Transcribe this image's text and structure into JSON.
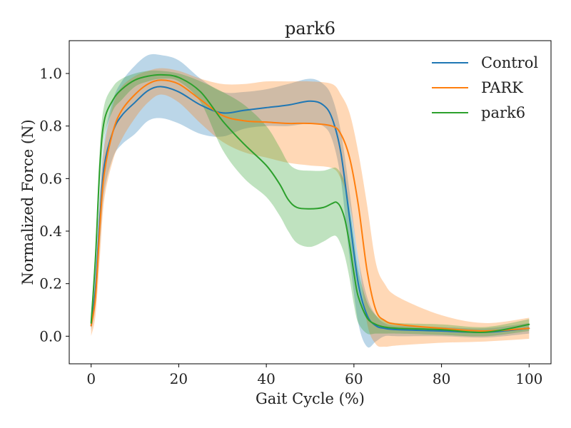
{
  "chart_data": {
    "type": "line",
    "title": "park6",
    "xlabel": "Gait Cycle (%)",
    "ylabel": "Normalized Force (N)",
    "xlim": [
      -5,
      105
    ],
    "ylim": [
      -0.105,
      1.125
    ],
    "xticks": [
      0,
      20,
      40,
      60,
      80,
      100
    ],
    "yticks": [
      0.0,
      0.2,
      0.4,
      0.6,
      0.8,
      1.0
    ],
    "xtick_labels": [
      "0",
      "20",
      "40",
      "60",
      "80",
      "100"
    ],
    "ytick_labels": [
      "0.0",
      "0.2",
      "0.4",
      "0.6",
      "0.8",
      "1.0"
    ],
    "grid": false,
    "legend_position": "top-right",
    "series": [
      {
        "name": "Control",
        "color": "#1f77b4",
        "band_opacity": 0.3,
        "x": [
          0,
          1,
          2,
          3,
          5,
          7,
          10,
          13,
          16,
          20,
          25,
          30,
          35,
          40,
          45,
          50,
          53,
          55,
          57,
          59,
          61,
          63,
          65,
          67,
          70,
          80,
          90,
          100
        ],
        "mean": [
          0.04,
          0.18,
          0.45,
          0.65,
          0.78,
          0.84,
          0.89,
          0.935,
          0.95,
          0.93,
          0.88,
          0.85,
          0.86,
          0.87,
          0.88,
          0.895,
          0.88,
          0.83,
          0.7,
          0.45,
          0.2,
          0.08,
          0.04,
          0.03,
          0.025,
          0.02,
          0.015,
          0.03
        ],
        "upper": [
          0.07,
          0.25,
          0.55,
          0.75,
          0.9,
          0.97,
          1.03,
          1.07,
          1.07,
          1.05,
          0.98,
          0.93,
          0.93,
          0.94,
          0.96,
          0.98,
          0.96,
          0.91,
          0.78,
          0.55,
          0.3,
          0.15,
          0.08,
          0.05,
          0.04,
          0.035,
          0.03,
          0.05
        ],
        "lower": [
          0.02,
          0.12,
          0.35,
          0.55,
          0.68,
          0.73,
          0.77,
          0.82,
          0.83,
          0.81,
          0.77,
          0.76,
          0.79,
          0.8,
          0.8,
          0.81,
          0.8,
          0.75,
          0.6,
          0.3,
          0.05,
          -0.04,
          -0.02,
          0.0,
          0.0,
          0.0,
          -0.005,
          0.01
        ]
      },
      {
        "name": "PARK",
        "color": "#ff7f0e",
        "band_opacity": 0.3,
        "x": [
          0,
          1,
          2,
          3,
          5,
          7,
          10,
          13,
          16,
          20,
          25,
          30,
          35,
          40,
          45,
          50,
          55,
          57,
          59,
          61,
          63,
          65,
          67,
          70,
          80,
          90,
          100
        ],
        "mean": [
          0.04,
          0.15,
          0.42,
          0.62,
          0.78,
          0.86,
          0.92,
          0.96,
          0.975,
          0.96,
          0.9,
          0.84,
          0.82,
          0.815,
          0.81,
          0.81,
          0.8,
          0.77,
          0.68,
          0.5,
          0.25,
          0.1,
          0.06,
          0.045,
          0.03,
          0.02,
          0.03
        ],
        "upper": [
          0.08,
          0.22,
          0.52,
          0.72,
          0.88,
          0.95,
          0.99,
          1.01,
          1.02,
          1.01,
          0.98,
          0.96,
          0.96,
          0.97,
          0.97,
          0.97,
          0.96,
          0.92,
          0.85,
          0.7,
          0.5,
          0.28,
          0.2,
          0.15,
          0.08,
          0.05,
          0.07
        ],
        "lower": [
          0.0,
          0.08,
          0.3,
          0.52,
          0.67,
          0.75,
          0.83,
          0.89,
          0.92,
          0.89,
          0.81,
          0.74,
          0.7,
          0.68,
          0.66,
          0.65,
          0.64,
          0.6,
          0.5,
          0.3,
          0.05,
          -0.03,
          -0.04,
          -0.035,
          -0.025,
          -0.02,
          -0.01
        ]
      },
      {
        "name": "park6",
        "color": "#2ca02c",
        "band_opacity": 0.3,
        "x": [
          0,
          1,
          2,
          3,
          5,
          7,
          10,
          13,
          16,
          20,
          25,
          30,
          35,
          40,
          43,
          45,
          47,
          50,
          53,
          55,
          56,
          57,
          58,
          59,
          60,
          61,
          63,
          65,
          67,
          70,
          80,
          90,
          100
        ],
        "mean": [
          0.05,
          0.3,
          0.65,
          0.82,
          0.9,
          0.94,
          0.975,
          0.99,
          0.995,
          0.985,
          0.93,
          0.82,
          0.73,
          0.65,
          0.58,
          0.52,
          0.49,
          0.485,
          0.49,
          0.505,
          0.51,
          0.49,
          0.44,
          0.35,
          0.24,
          0.15,
          0.07,
          0.045,
          0.035,
          0.03,
          0.025,
          0.015,
          0.045
        ],
        "upper": [
          0.08,
          0.35,
          0.72,
          0.88,
          0.95,
          0.98,
          1.0,
          1.01,
          1.01,
          1.0,
          0.97,
          0.93,
          0.88,
          0.8,
          0.72,
          0.66,
          0.635,
          0.63,
          0.63,
          0.64,
          0.64,
          0.62,
          0.58,
          0.49,
          0.37,
          0.25,
          0.13,
          0.08,
          0.06,
          0.05,
          0.045,
          0.035,
          0.065
        ],
        "lower": [
          0.03,
          0.25,
          0.58,
          0.76,
          0.86,
          0.9,
          0.95,
          0.97,
          0.98,
          0.97,
          0.89,
          0.71,
          0.6,
          0.53,
          0.46,
          0.4,
          0.355,
          0.34,
          0.36,
          0.38,
          0.38,
          0.35,
          0.3,
          0.22,
          0.12,
          0.05,
          0.01,
          0.01,
          0.01,
          0.01,
          0.005,
          0.0,
          0.02
        ]
      }
    ]
  }
}
